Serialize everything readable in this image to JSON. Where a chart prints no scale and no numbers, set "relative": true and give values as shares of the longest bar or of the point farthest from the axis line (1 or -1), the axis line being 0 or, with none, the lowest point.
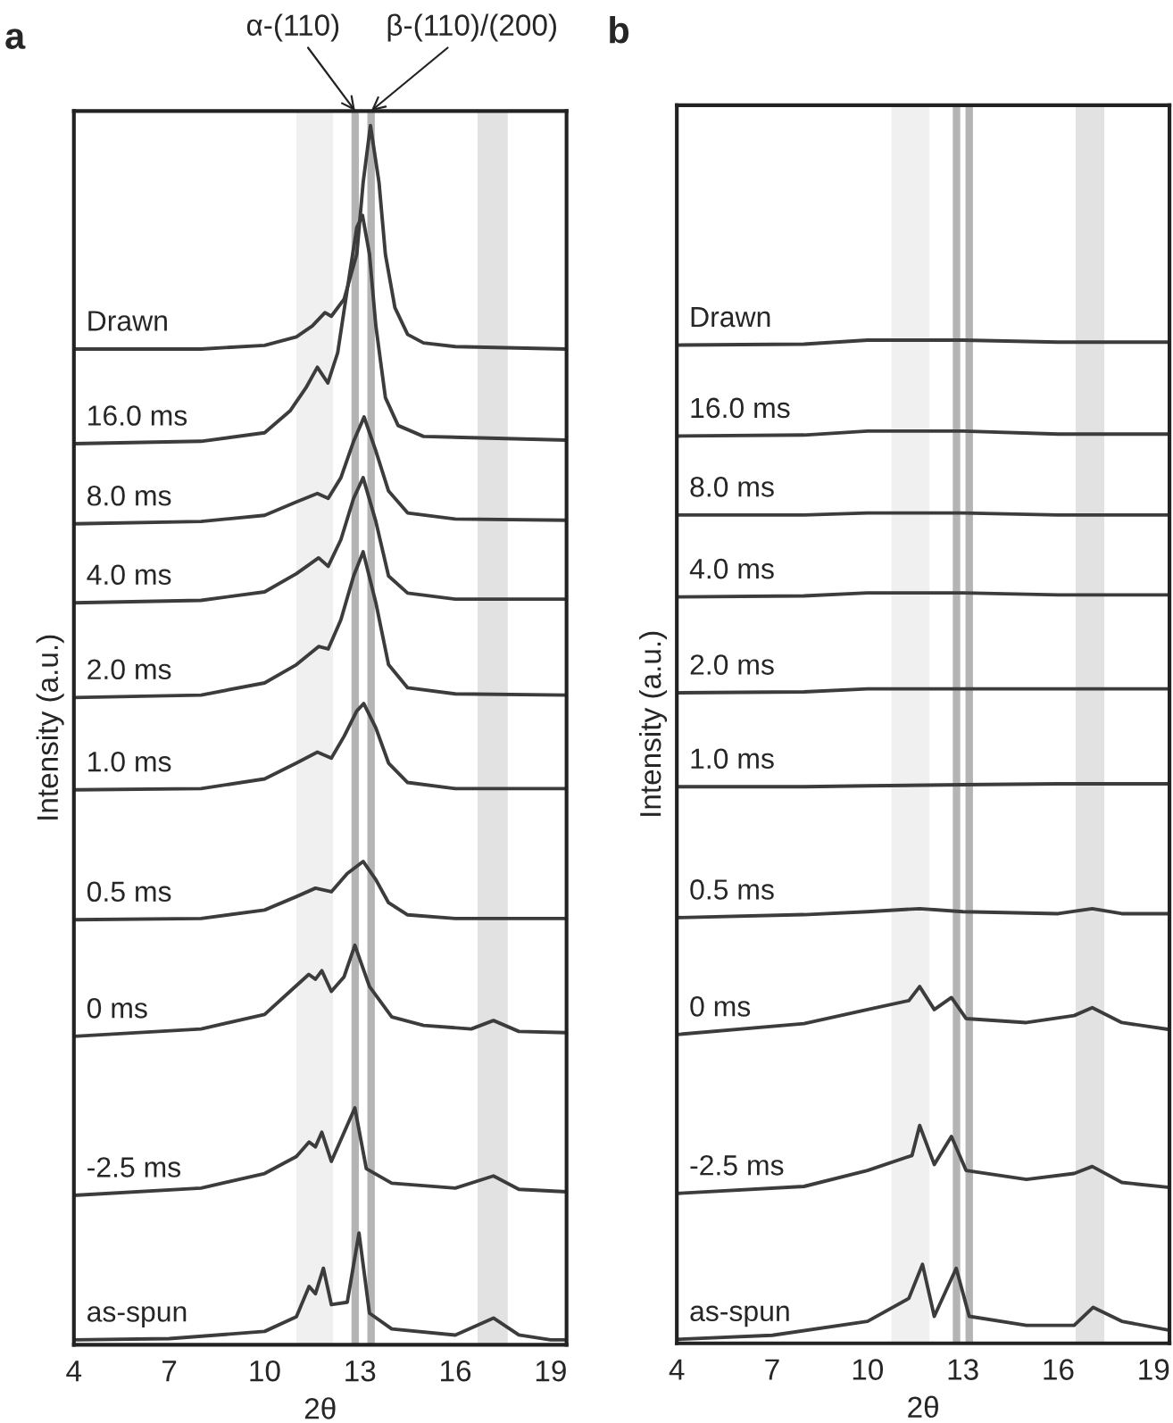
{
  "chart_data": [
    {
      "type": "line",
      "title": "a",
      "xlabel": "2θ",
      "ylabel": "Intensity (a.u.)",
      "relative": true,
      "xlim": [
        4,
        19.5
      ],
      "xticks": [
        4,
        7,
        10,
        13,
        16,
        19
      ],
      "grid": false,
      "legend": false,
      "bands": [
        {
          "axis": "x",
          "from": 11.0,
          "to": 12.15,
          "color": "#f0f0f0"
        },
        {
          "axis": "x",
          "from": 16.7,
          "to": 17.65,
          "color": "#e2e2e2"
        }
      ],
      "ref_lines": [
        {
          "axis": "x",
          "value": 12.85,
          "label": "α-(110)",
          "color": "#b4b4b4"
        },
        {
          "axis": "x",
          "value": 13.35,
          "label": "β-(110)/(200)",
          "color": "#b4b4b4"
        }
      ],
      "series": [
        {
          "name": "Drawn",
          "color": "#3c3c3c",
          "x": [
            4,
            8,
            10,
            11,
            11.5,
            11.9,
            12.1,
            12.5,
            12.9,
            13.1,
            13.33,
            13.6,
            13.8,
            14.1,
            14.5,
            15,
            16,
            19.5
          ],
          "values": [
            0.816,
            0.816,
            0.819,
            0.826,
            0.835,
            0.846,
            0.843,
            0.857,
            0.894,
            0.953,
            1,
            0.953,
            0.894,
            0.85,
            0.828,
            0.821,
            0.818,
            0.816
          ]
        },
        {
          "name": "16.0 ms",
          "color": "#3c3c3c",
          "x": [
            4,
            8,
            10,
            10.8,
            11.3,
            11.66,
            11.99,
            12.3,
            12.6,
            12.9,
            13.08,
            13.3,
            13.5,
            13.8,
            14.2,
            15,
            19.5
          ],
          "values": [
            0.738,
            0.74,
            0.747,
            0.765,
            0.784,
            0.801,
            0.788,
            0.813,
            0.865,
            0.916,
            0.926,
            0.894,
            0.835,
            0.776,
            0.753,
            0.744,
            0.741
          ]
        },
        {
          "name": "8.0 ms",
          "color": "#3c3c3c",
          "x": [
            4,
            8,
            10,
            11,
            11.66,
            12.0,
            12.4,
            12.8,
            13.13,
            13.5,
            13.9,
            14.5,
            16,
            19.5
          ],
          "values": [
            0.672,
            0.674,
            0.679,
            0.69,
            0.697,
            0.693,
            0.71,
            0.74,
            0.76,
            0.732,
            0.699,
            0.681,
            0.676,
            0.675
          ]
        },
        {
          "name": "4.0 ms",
          "color": "#3c3c3c",
          "x": [
            4,
            8,
            10,
            11,
            11.7,
            12.0,
            12.4,
            12.8,
            13.1,
            13.5,
            13.9,
            14.5,
            16,
            19.5
          ],
          "values": [
            0.607,
            0.609,
            0.616,
            0.631,
            0.644,
            0.637,
            0.659,
            0.693,
            0.71,
            0.674,
            0.629,
            0.615,
            0.61,
            0.61
          ]
        },
        {
          "name": "2.0 ms",
          "color": "#3c3c3c",
          "x": [
            4,
            8,
            10,
            11,
            11.7,
            12.0,
            12.4,
            12.8,
            13.1,
            13.5,
            13.9,
            14.5,
            16,
            19.5
          ],
          "values": [
            0.529,
            0.531,
            0.541,
            0.556,
            0.571,
            0.569,
            0.593,
            0.629,
            0.649,
            0.607,
            0.556,
            0.537,
            0.532,
            0.531
          ]
        },
        {
          "name": "1.0 ms",
          "color": "#3c3c3c",
          "x": [
            4,
            8,
            10,
            11,
            11.66,
            12.1,
            12.5,
            12.9,
            13.12,
            13.5,
            13.9,
            14.5,
            16,
            19.5
          ],
          "values": [
            0.453,
            0.454,
            0.462,
            0.475,
            0.484,
            0.479,
            0.497,
            0.518,
            0.524,
            0.504,
            0.475,
            0.459,
            0.454,
            0.454
          ]
        },
        {
          "name": "0.5 ms",
          "color": "#3c3c3c",
          "x": [
            4,
            8,
            10,
            11,
            11.6,
            12.1,
            12.6,
            13.1,
            13.5,
            13.9,
            14.5,
            16,
            19.5
          ],
          "values": [
            0.346,
            0.347,
            0.354,
            0.365,
            0.372,
            0.369,
            0.384,
            0.394,
            0.379,
            0.36,
            0.35,
            0.347,
            0.347
          ]
        },
        {
          "name": "0 ms",
          "color": "#3c3c3c",
          "x": [
            4,
            8,
            10,
            10.8,
            11.39,
            11.6,
            11.8,
            12.1,
            12.5,
            12.84,
            13.3,
            14,
            15,
            16.5,
            17.2,
            18,
            19.5
          ],
          "values": [
            0.25,
            0.256,
            0.268,
            0.287,
            0.301,
            0.297,
            0.304,
            0.287,
            0.299,
            0.325,
            0.291,
            0.266,
            0.259,
            0.256,
            0.263,
            0.254,
            0.253
          ]
        },
        {
          "name": "-2.5 ms",
          "color": "#3c3c3c",
          "x": [
            4,
            8,
            10,
            11,
            11.4,
            11.6,
            11.8,
            12.1,
            12.84,
            13.2,
            14,
            16,
            17.2,
            18,
            19.5
          ],
          "values": [
            0.119,
            0.125,
            0.137,
            0.151,
            0.163,
            0.159,
            0.171,
            0.147,
            0.191,
            0.141,
            0.129,
            0.125,
            0.135,
            0.124,
            0.122
          ]
        },
        {
          "name": "as-spun",
          "color": "#3c3c3c",
          "x": [
            4,
            7,
            10,
            11,
            11.4,
            11.6,
            11.85,
            12.1,
            12.6,
            12.97,
            13.3,
            14,
            16,
            17.2,
            18,
            19,
            19.5
          ],
          "values": [
            0,
            0.001,
            0.007,
            0.019,
            0.044,
            0.038,
            0.059,
            0.029,
            0.031,
            0.088,
            0.022,
            0.009,
            0.004,
            0.018,
            0.004,
            0,
            0
          ]
        }
      ]
    },
    {
      "type": "line",
      "title": "b",
      "xlabel": "2θ",
      "ylabel": "Intensity (a.u.)",
      "relative": true,
      "xlim": [
        4,
        19.5
      ],
      "xticks": [
        4,
        7,
        10,
        13,
        16,
        19
      ],
      "grid": false,
      "legend": false,
      "bands": [
        {
          "axis": "x",
          "from": 10.75,
          "to": 11.95,
          "color": "#f0f0f0"
        },
        {
          "axis": "x",
          "from": 16.55,
          "to": 17.45,
          "color": "#e2e2e2"
        }
      ],
      "ref_lines": [
        {
          "axis": "x",
          "value": 12.8,
          "color": "#b4b4b4"
        },
        {
          "axis": "x",
          "value": 13.2,
          "color": "#b4b4b4"
        }
      ],
      "series": [
        {
          "name": "Drawn",
          "color": "#3c3c3c",
          "x": [
            4,
            8,
            10,
            13,
            16,
            19.5
          ],
          "values": [
            0.995,
            0.996,
            1,
            1,
            0.998,
            0.998
          ]
        },
        {
          "name": "16.0 ms",
          "color": "#3c3c3c",
          "x": [
            4,
            8,
            10,
            13,
            16,
            19.5
          ],
          "values": [
            0.904,
            0.905,
            0.909,
            0.909,
            0.906,
            0.906
          ]
        },
        {
          "name": "8.0 ms",
          "color": "#3c3c3c",
          "x": [
            4,
            8,
            10,
            13,
            16,
            19.5
          ],
          "values": [
            0.825,
            0.825,
            0.827,
            0.827,
            0.825,
            0.825
          ]
        },
        {
          "name": "4.0 ms",
          "color": "#3c3c3c",
          "x": [
            4,
            8,
            10,
            13,
            16,
            19.5
          ],
          "values": [
            0.743,
            0.744,
            0.747,
            0.747,
            0.745,
            0.745
          ]
        },
        {
          "name": "2.0 ms",
          "color": "#3c3c3c",
          "x": [
            4,
            8,
            10,
            13,
            16,
            19.5
          ],
          "values": [
            0.647,
            0.648,
            0.651,
            0.651,
            0.651,
            0.651
          ]
        },
        {
          "name": "1.0 ms",
          "color": "#3c3c3c",
          "x": [
            4,
            8,
            10,
            13,
            16,
            19.5
          ],
          "values": [
            0.553,
            0.553,
            0.554,
            0.555,
            0.556,
            0.556
          ]
        },
        {
          "name": "0.5 ms",
          "color": "#3c3c3c",
          "x": [
            4,
            8,
            10,
            11.64,
            13,
            16,
            17.07,
            18,
            19.5
          ],
          "values": [
            0.422,
            0.425,
            0.428,
            0.431,
            0.428,
            0.426,
            0.431,
            0.426,
            0.426
          ]
        },
        {
          "name": "0 ms",
          "color": "#3c3c3c",
          "x": [
            4,
            8,
            10,
            11.3,
            11.64,
            12.1,
            12.64,
            13.1,
            15,
            16.5,
            17.07,
            18,
            19.5
          ],
          "values": [
            0.305,
            0.316,
            0.33,
            0.339,
            0.353,
            0.33,
            0.342,
            0.321,
            0.317,
            0.324,
            0.332,
            0.317,
            0.31
          ]
        },
        {
          "name": "-2.5 ms",
          "color": "#3c3c3c",
          "x": [
            4,
            8,
            10,
            11.4,
            11.64,
            12.1,
            12.64,
            13.1,
            15,
            16.5,
            17.07,
            18,
            19.5
          ],
          "values": [
            0.146,
            0.153,
            0.169,
            0.184,
            0.214,
            0.175,
            0.203,
            0.169,
            0.16,
            0.166,
            0.173,
            0.157,
            0.152
          ]
        },
        {
          "name": "as-spun",
          "color": "#3c3c3c",
          "x": [
            4,
            7,
            10,
            11.3,
            11.73,
            12.1,
            12.79,
            13.2,
            15,
            16.5,
            17.1,
            18,
            19.5
          ],
          "values": [
            0,
            0.004,
            0.018,
            0.041,
            0.075,
            0.023,
            0.071,
            0.023,
            0.014,
            0.014,
            0.032,
            0.018,
            0.009
          ]
        }
      ]
    }
  ]
}
